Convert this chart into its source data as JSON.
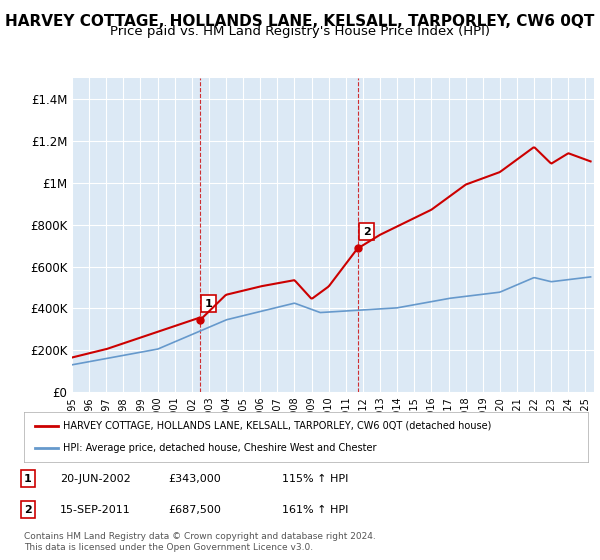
{
  "title": "HARVEY COTTAGE, HOLLANDS LANE, KELSALL, TARPORLEY, CW6 0QT",
  "subtitle": "Price paid vs. HM Land Registry's House Price Index (HPI)",
  "title_fontsize": 11,
  "subtitle_fontsize": 9.5,
  "background_color": "#ffffff",
  "plot_bg_color": "#dce9f5",
  "grid_color": "#ffffff",
  "red_line_color": "#cc0000",
  "blue_line_color": "#6699cc",
  "dashed_color": "#cc0000",
  "ylabel_ticks": [
    "£0",
    "£200K",
    "£400K",
    "£600K",
    "£800K",
    "£1M",
    "£1.2M",
    "£1.4M"
  ],
  "ytick_values": [
    0,
    200000,
    400000,
    600000,
    800000,
    1000000,
    1200000,
    1400000
  ],
  "ylim": [
    0,
    1500000
  ],
  "xlim_start": 1995.0,
  "xlim_end": 2025.5,
  "xtick_years": [
    1995,
    1996,
    1997,
    1998,
    1999,
    2000,
    2001,
    2002,
    2003,
    2004,
    2005,
    2006,
    2007,
    2008,
    2009,
    2010,
    2011,
    2012,
    2013,
    2014,
    2015,
    2016,
    2017,
    2018,
    2019,
    2020,
    2021,
    2022,
    2023,
    2024,
    2025
  ],
  "sale1_x": 2002.47,
  "sale1_y": 343000,
  "sale1_label": "1",
  "sale2_x": 2011.71,
  "sale2_y": 687500,
  "sale2_label": "2",
  "legend_red_label": "HARVEY COTTAGE, HOLLANDS LANE, KELSALL, TARPORLEY, CW6 0QT (detached house)",
  "legend_blue_label": "HPI: Average price, detached house, Cheshire West and Chester",
  "table_rows": [
    {
      "num": "1",
      "date": "20-JUN-2002",
      "price": "£343,000",
      "hpi": "115% ↑ HPI"
    },
    {
      "num": "2",
      "date": "15-SEP-2011",
      "price": "£687,500",
      "hpi": "161% ↑ HPI"
    }
  ],
  "footer": "Contains HM Land Registry data © Crown copyright and database right 2024.\nThis data is licensed under the Open Government Licence v3.0."
}
